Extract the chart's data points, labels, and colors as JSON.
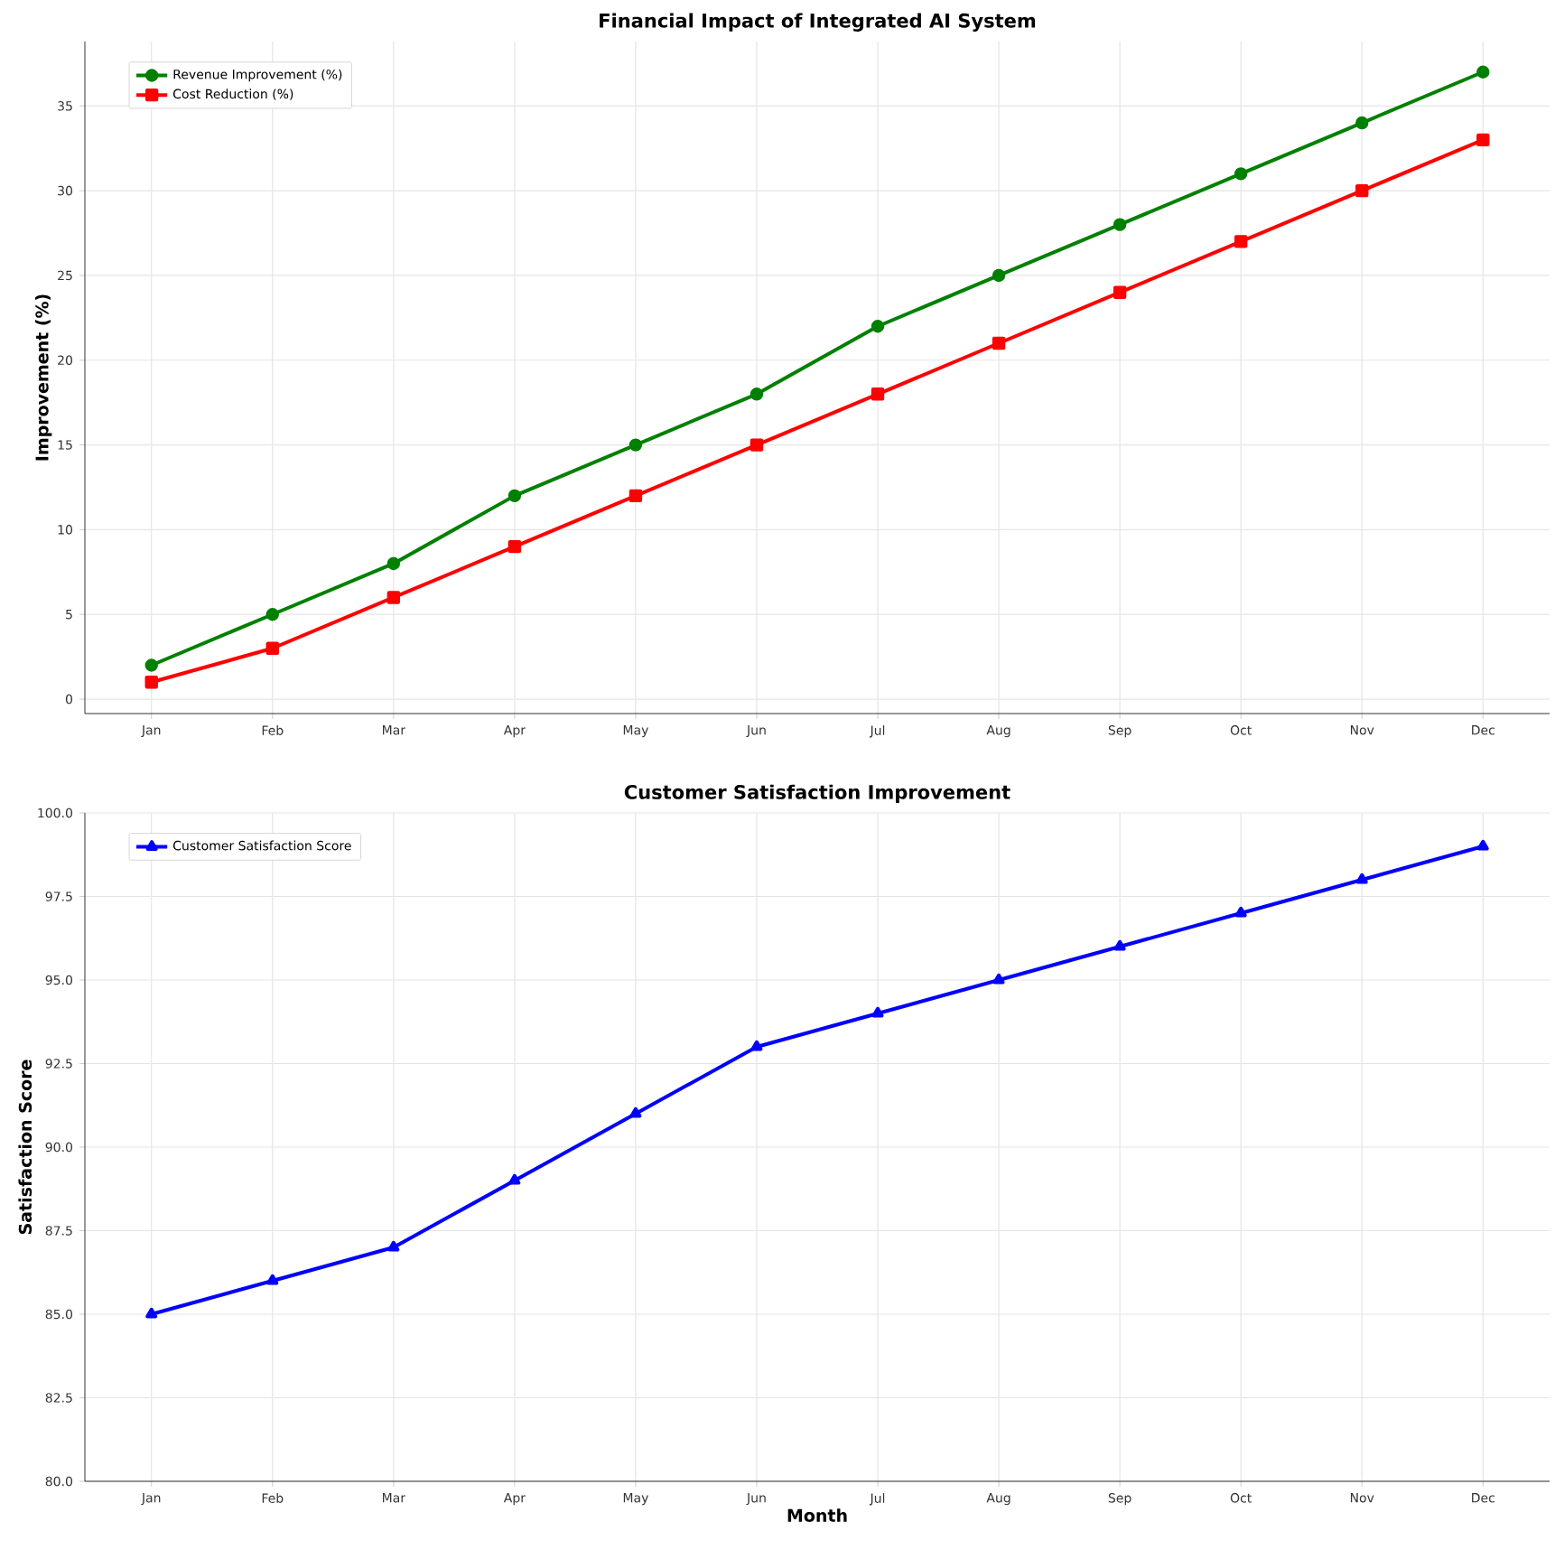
{
  "chart_data": [
    {
      "type": "line",
      "title": "Financial Impact of Integrated AI System",
      "ylabel": "Improvement (%)",
      "categories": [
        "Jan",
        "Feb",
        "Mar",
        "Apr",
        "May",
        "Jun",
        "Jul",
        "Aug",
        "Sep",
        "Oct",
        "Nov",
        "Dec"
      ],
      "series": [
        {
          "name": "Revenue Improvement (%)",
          "color": "#008000",
          "marker": "circle",
          "values": [
            2,
            5,
            8,
            12,
            15,
            18,
            22,
            25,
            28,
            31,
            34,
            37
          ]
        },
        {
          "name": "Cost Reduction (%)",
          "color": "#ff0000",
          "marker": "square",
          "values": [
            1,
            3,
            6,
            9,
            12,
            15,
            18,
            21,
            24,
            27,
            30,
            33
          ]
        }
      ],
      "ylim": [
        -0.85,
        38.8
      ],
      "yticks": [
        0,
        5,
        10,
        15,
        20,
        25,
        30,
        35
      ],
      "grid": true,
      "legend": "top left",
      "line_style": "solid"
    },
    {
      "type": "line",
      "title": "Customer Satisfaction Improvement",
      "xlabel": "Month",
      "ylabel": "Satisfaction Score",
      "categories": [
        "Jan",
        "Feb",
        "Mar",
        "Apr",
        "May",
        "Jun",
        "Jul",
        "Aug",
        "Sep",
        "Oct",
        "Nov",
        "Dec"
      ],
      "series": [
        {
          "name": "Customer Satisfaction Score",
          "color": "#0000ff",
          "marker": "triangle",
          "values": [
            85.0,
            86.0,
            87.0,
            89.0,
            91.0,
            93.0,
            94.0,
            95.0,
            96.0,
            97.0,
            98.0,
            99.0
          ]
        }
      ],
      "ylim": [
        80,
        100
      ],
      "yticks": [
        {
          "value": 80,
          "label": "80.0"
        },
        {
          "value": 82.5,
          "label": "82.5"
        },
        {
          "value": 85,
          "label": "85.0"
        },
        {
          "value": 87.5,
          "label": "87.5"
        },
        {
          "value": 90,
          "label": "90.0"
        },
        {
          "value": 92.5,
          "label": "92.5"
        },
        {
          "value": 95,
          "label": "95.0"
        },
        {
          "value": 97.5,
          "label": "97.5"
        },
        {
          "value": 100,
          "label": "100.0"
        }
      ],
      "grid": true,
      "legend": "top left",
      "line_style": "solid"
    }
  ]
}
